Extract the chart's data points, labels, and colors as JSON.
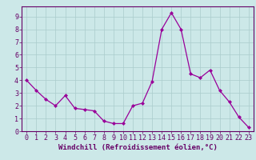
{
  "x": [
    0,
    1,
    2,
    3,
    4,
    5,
    6,
    7,
    8,
    9,
    10,
    11,
    12,
    13,
    14,
    15,
    16,
    17,
    18,
    19,
    20,
    21,
    22,
    23
  ],
  "y": [
    4.0,
    3.2,
    2.5,
    2.0,
    2.8,
    1.8,
    1.7,
    1.6,
    0.8,
    0.6,
    0.6,
    2.0,
    2.2,
    3.9,
    8.0,
    9.3,
    8.0,
    4.5,
    4.2,
    4.8,
    3.2,
    2.3,
    1.1,
    0.3
  ],
  "line_color": "#990099",
  "marker": "D",
  "marker_size": 2.0,
  "bg_color": "#cce8e8",
  "grid_color": "#aacccc",
  "xlabel": "Windchill (Refroidissement éolien,°C)",
  "xlim": [
    -0.5,
    23.5
  ],
  "ylim": [
    0,
    9.8
  ],
  "yticks": [
    0,
    1,
    2,
    3,
    4,
    5,
    6,
    7,
    8,
    9
  ],
  "xticks": [
    0,
    1,
    2,
    3,
    4,
    5,
    6,
    7,
    8,
    9,
    10,
    11,
    12,
    13,
    14,
    15,
    16,
    17,
    18,
    19,
    20,
    21,
    22,
    23
  ],
  "xlabel_fontsize": 6.5,
  "tick_fontsize": 6.0,
  "label_color": "#660066",
  "spine_color": "#660066",
  "fig_bg": "#cce8e8"
}
